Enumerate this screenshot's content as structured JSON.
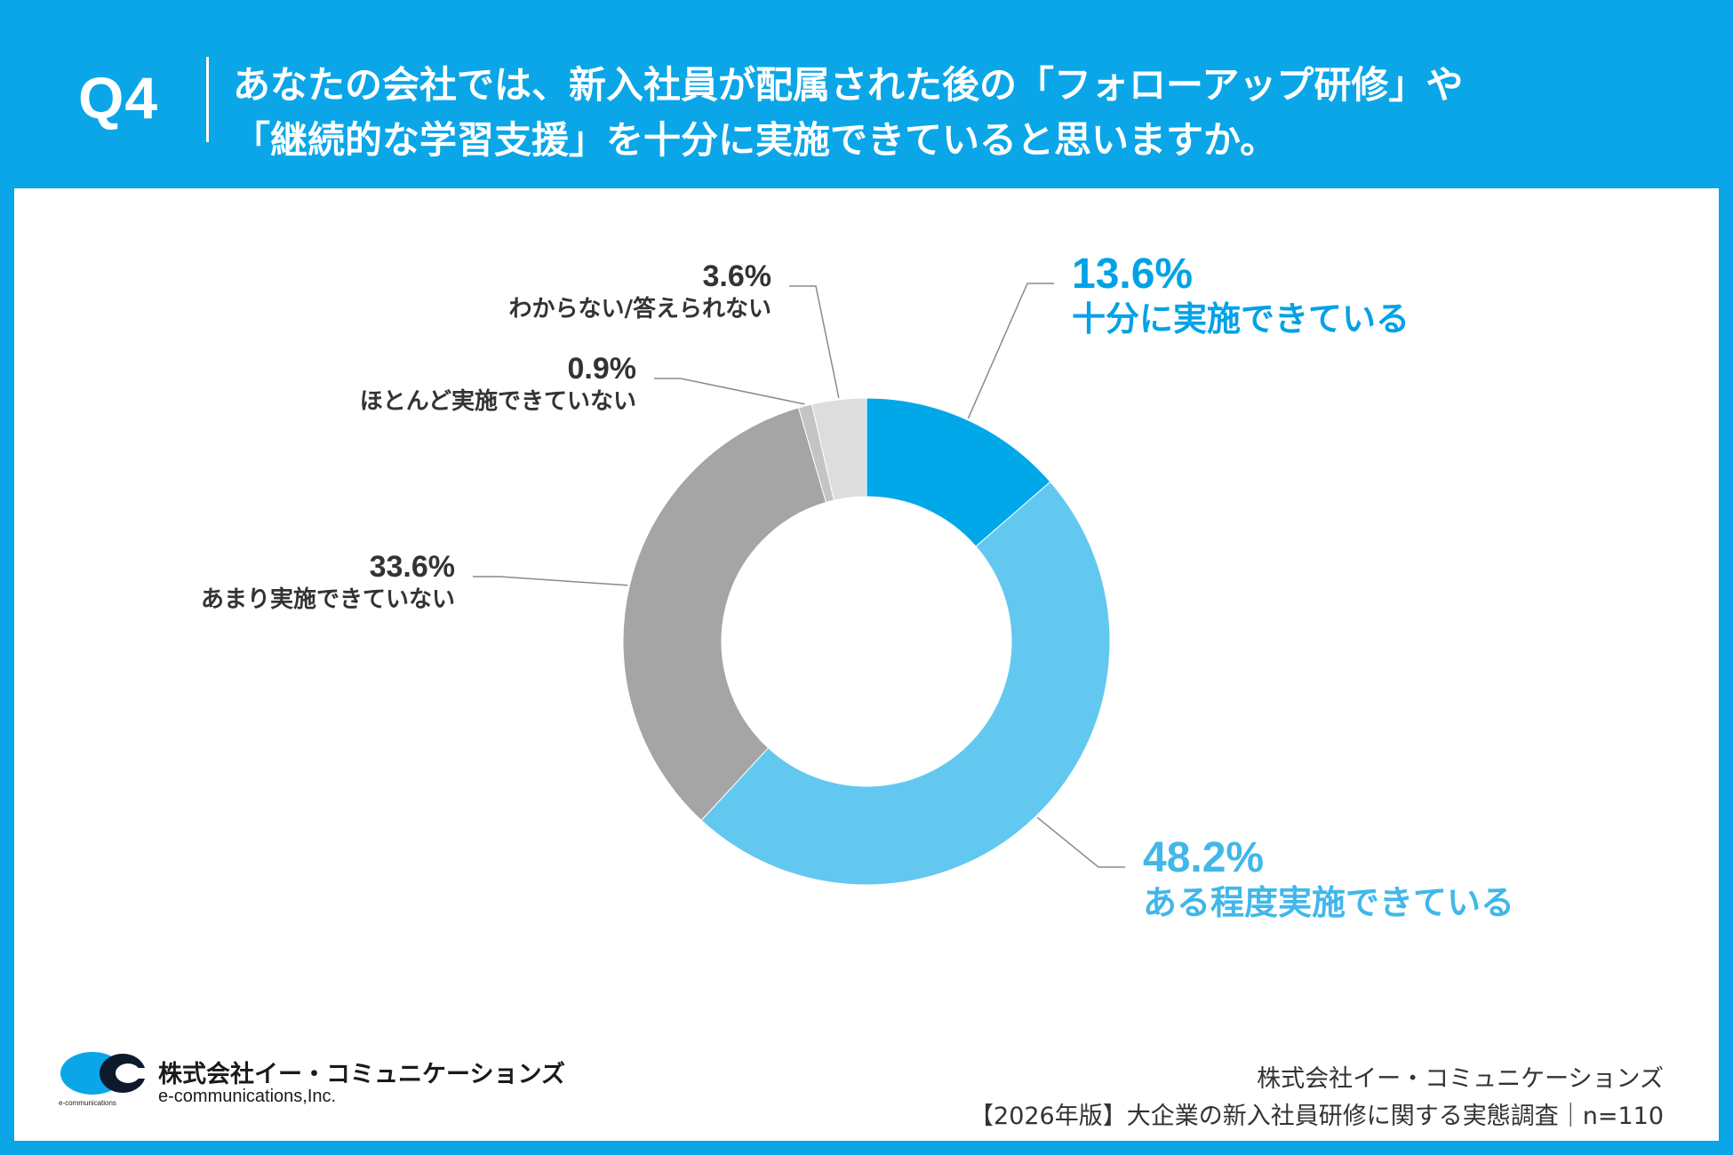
{
  "header": {
    "question_number": "Q4",
    "question_line_1": "あなたの会社では、新入社員が配属された後の「フォローアップ研修」や",
    "question_line_2": "「継続的な学習支援」を十分に実施できていると思いますか。"
  },
  "chart_data": {
    "type": "pie",
    "subtype": "donut",
    "slices": [
      {
        "label": "十分に実施できている",
        "value": 13.6,
        "display": "13.6%",
        "color": "#00a8ea"
      },
      {
        "label": "ある程度実施できている",
        "value": 48.2,
        "display": "48.2%",
        "color": "#62c8f0"
      },
      {
        "label": "あまり実施できていない",
        "value": 33.6,
        "display": "33.6%",
        "color": "#a5a5a5"
      },
      {
        "label": "ほとんど実施できていない",
        "value": 0.9,
        "display": "0.9%",
        "color": "#c4c4c4"
      },
      {
        "label": "わからない/答えられない",
        "value": 3.6,
        "display": "3.6%",
        "color": "#dddddd"
      }
    ],
    "start": "12 o'clock",
    "direction": "clockwise"
  },
  "footer": {
    "logo_company": "株式会社イー・コミュニケーションズ",
    "logo_english": "e-communications,Inc.",
    "logo_tiny": "e-communications",
    "source_company": "株式会社イー・コミュニケーションズ",
    "source_survey": "【2026年版】大企業の新入社員研修に関する実態調査｜n=110"
  },
  "colors": {
    "brand": "#0aa6e8",
    "slice_label_blue": "#00a2e6",
    "slice_label_lightblue": "#41b7ea",
    "slice_label_dark": "#333333"
  }
}
